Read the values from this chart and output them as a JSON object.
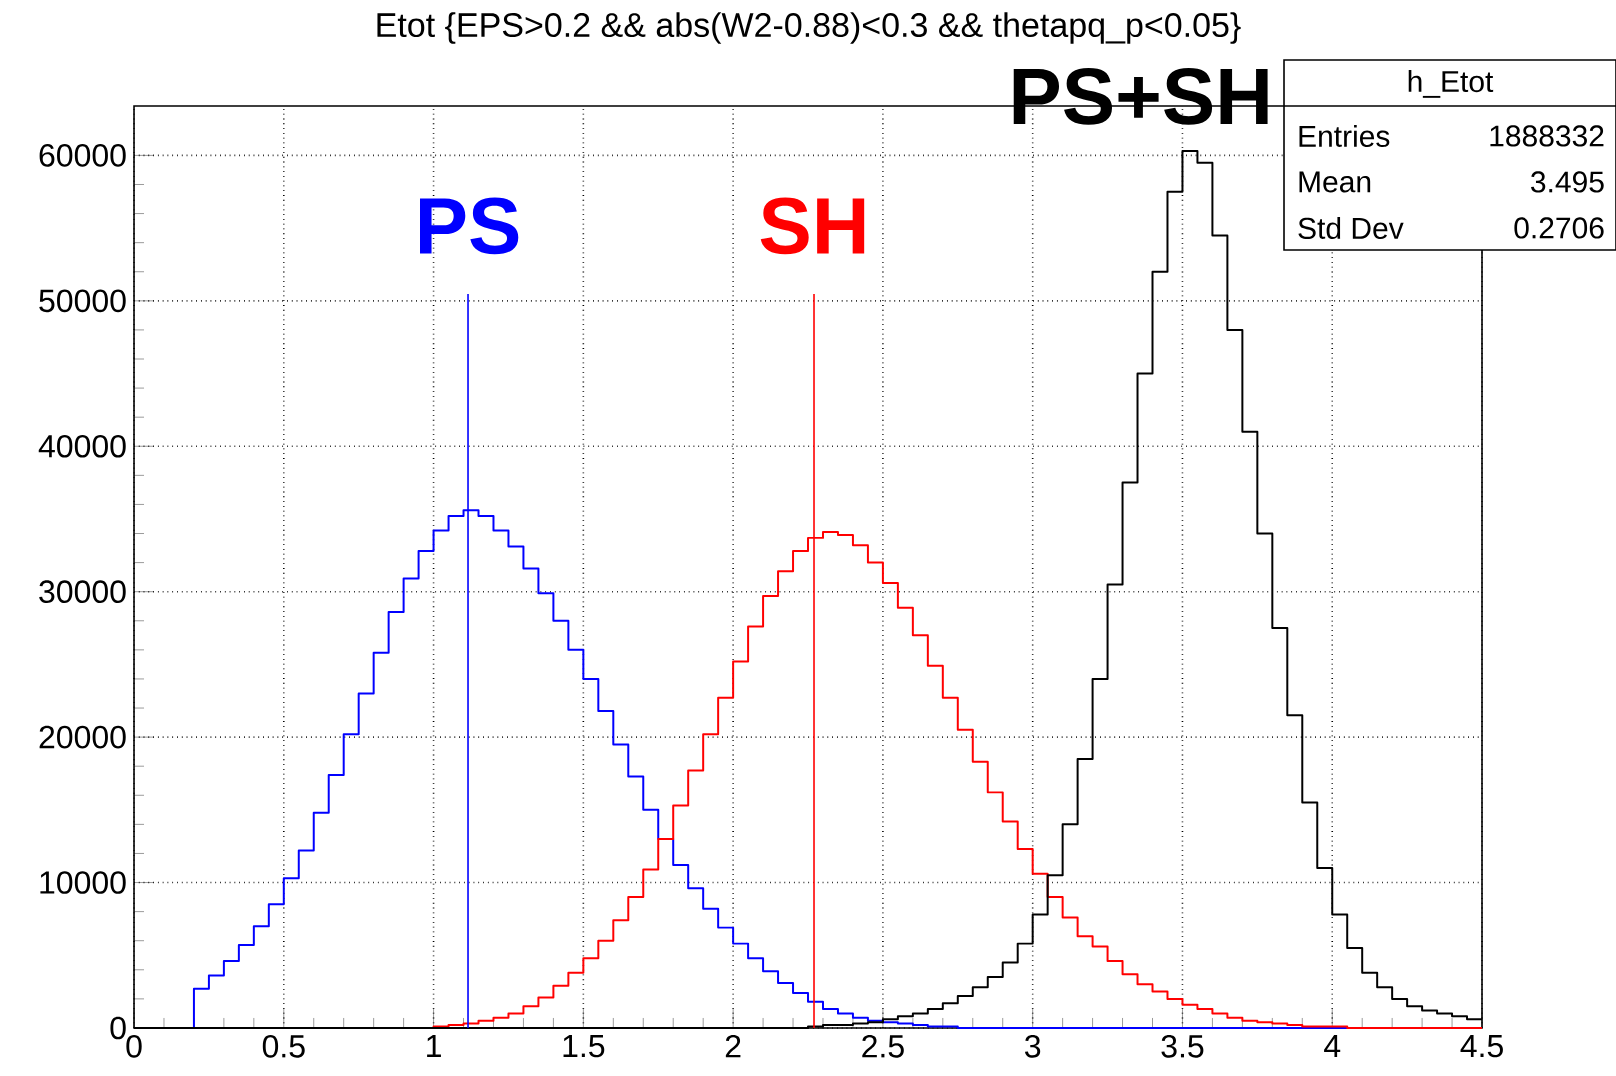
{
  "chart_data": {
    "type": "histogram",
    "title": "Etot {EPS>0.2 && abs(W2-0.88)<0.3 && thetapq_p<0.05}",
    "bins": [
      0,
      0.05,
      0.1,
      0.15,
      0.2,
      0.25,
      0.3,
      0.35,
      0.4,
      0.45,
      0.5,
      0.55,
      0.6,
      0.65,
      0.7,
      0.75,
      0.8,
      0.85,
      0.9,
      0.95,
      1.0,
      1.05,
      1.1,
      1.15,
      1.2,
      1.25,
      1.3,
      1.35,
      1.4,
      1.45,
      1.5,
      1.55,
      1.6,
      1.65,
      1.7,
      1.75,
      1.8,
      1.85,
      1.9,
      1.95,
      2.0,
      2.05,
      2.1,
      2.15,
      2.2,
      2.25,
      2.3,
      2.35,
      2.4,
      2.45,
      2.5,
      2.55,
      2.6,
      2.65,
      2.7,
      2.75,
      2.8,
      2.85,
      2.9,
      2.95,
      3.0,
      3.05,
      3.1,
      3.15,
      3.2,
      3.25,
      3.3,
      3.35,
      3.4,
      3.45,
      3.5,
      3.55,
      3.6,
      3.65,
      3.7,
      3.75,
      3.8,
      3.85,
      3.9,
      3.95,
      4.0,
      4.05,
      4.1,
      4.15,
      4.2,
      4.25,
      4.3,
      4.35,
      4.4,
      4.45,
      4.5
    ],
    "series": [
      {
        "color": "#0000ff",
        "values": [
          0,
          0,
          0,
          0,
          2700,
          3600,
          4600,
          5700,
          7000,
          8500,
          10300,
          12200,
          14800,
          17400,
          20200,
          23000,
          25800,
          28600,
          30900,
          32800,
          34200,
          35200,
          35600,
          35200,
          34200,
          33100,
          31600,
          29900,
          28000,
          26000,
          24000,
          21800,
          19500,
          17300,
          15000,
          13000,
          11200,
          9600,
          8200,
          6900,
          5800,
          4800,
          3900,
          3100,
          2400,
          1800,
          1300,
          1000,
          700,
          500,
          400,
          300,
          200,
          100,
          100,
          0,
          0,
          0,
          0,
          0,
          0,
          0,
          0,
          0,
          0,
          0,
          0,
          0,
          0,
          0,
          0,
          0,
          0,
          0,
          0,
          0,
          0,
          0,
          0,
          0,
          0,
          0,
          0,
          0,
          0,
          0,
          0,
          0,
          0,
          0
        ]
      },
      {
        "color": "#ff0000",
        "values": [
          0,
          0,
          0,
          0,
          0,
          0,
          0,
          0,
          0,
          0,
          0,
          0,
          0,
          0,
          0,
          0,
          0,
          0,
          0,
          0,
          100,
          200,
          300,
          500,
          700,
          1000,
          1500,
          2100,
          2900,
          3800,
          4800,
          6000,
          7400,
          9000,
          10900,
          13000,
          15300,
          17700,
          20200,
          22700,
          25200,
          27600,
          29700,
          31400,
          32800,
          33700,
          34100,
          33900,
          33200,
          32000,
          30600,
          28900,
          27000,
          24900,
          22700,
          20500,
          18300,
          16200,
          14200,
          12300,
          10600,
          9000,
          7600,
          6300,
          5600,
          4600,
          3700,
          3000,
          2500,
          2000,
          1600,
          1300,
          1000,
          700,
          500,
          400,
          300,
          200,
          100,
          100,
          100,
          0,
          0,
          0,
          0,
          0,
          0,
          0,
          0,
          0
        ]
      },
      {
        "color": "#000000",
        "values": [
          0,
          0,
          0,
          0,
          0,
          0,
          0,
          0,
          0,
          0,
          0,
          0,
          0,
          0,
          0,
          0,
          0,
          0,
          0,
          0,
          0,
          0,
          0,
          0,
          0,
          0,
          0,
          0,
          0,
          0,
          0,
          0,
          0,
          0,
          0,
          0,
          0,
          0,
          0,
          0,
          0,
          0,
          0,
          0,
          0,
          100,
          200,
          200,
          300,
          400,
          600,
          800,
          1000,
          1300,
          1700,
          2200,
          2800,
          3500,
          4500,
          5800,
          7800,
          10500,
          14000,
          18500,
          24000,
          30500,
          37500,
          45000,
          52000,
          57500,
          60300,
          59500,
          54500,
          48000,
          41000,
          34000,
          27500,
          21500,
          15500,
          11000,
          7800,
          5500,
          3800,
          2800,
          2000,
          1500,
          1200,
          1000,
          800,
          600
        ]
      }
    ],
    "xlim": [
      0,
      4.5
    ],
    "ylim": [
      0,
      63400
    ],
    "xticks": [
      0,
      0.5,
      1,
      1.5,
      2,
      2.5,
      3,
      3.5,
      4,
      4.5
    ],
    "yticks": [
      0,
      10000,
      20000,
      30000,
      40000,
      50000,
      60000
    ],
    "grid": true,
    "ref_lines": [
      {
        "axis": "x",
        "value": 1.115,
        "label": "PS",
        "color": "#0000ff"
      },
      {
        "axis": "x",
        "value": 2.27,
        "label": "SH",
        "color": "#ff0000"
      }
    ],
    "annotations": [
      "PS+SH",
      "h_Etot",
      "Entries",
      "1888332",
      "Mean",
      "3.495",
      "Std Dev",
      "0.2706"
    ]
  }
}
